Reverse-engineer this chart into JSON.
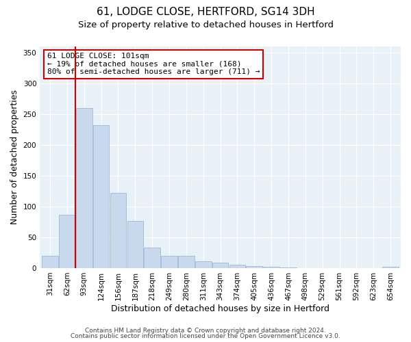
{
  "title": "61, LODGE CLOSE, HERTFORD, SG14 3DH",
  "subtitle": "Size of property relative to detached houses in Hertford",
  "xlabel": "Distribution of detached houses by size in Hertford",
  "ylabel": "Number of detached properties",
  "categories": [
    "31sqm",
    "62sqm",
    "93sqm",
    "124sqm",
    "156sqm",
    "187sqm",
    "218sqm",
    "249sqm",
    "280sqm",
    "311sqm",
    "343sqm",
    "374sqm",
    "405sqm",
    "436sqm",
    "467sqm",
    "498sqm",
    "529sqm",
    "561sqm",
    "592sqm",
    "623sqm",
    "654sqm"
  ],
  "values": [
    20,
    87,
    260,
    232,
    122,
    77,
    33,
    20,
    20,
    11,
    9,
    5,
    3,
    2,
    1,
    0,
    0,
    0,
    0,
    0,
    2
  ],
  "bar_color": "#c8d9ed",
  "bar_edgecolor": "#a0b8d8",
  "vline_color": "#cc0000",
  "vline_x_index": 2,
  "ylim": [
    0,
    360
  ],
  "yticks": [
    0,
    50,
    100,
    150,
    200,
    250,
    300,
    350
  ],
  "annotation_text": "61 LODGE CLOSE: 101sqm\n← 19% of detached houses are smaller (168)\n80% of semi-detached houses are larger (711) →",
  "annotation_box_edgecolor": "#cc0000",
  "annotation_box_facecolor": "#ffffff",
  "footer_line1": "Contains HM Land Registry data © Crown copyright and database right 2024.",
  "footer_line2": "Contains public sector information licensed under the Open Government Licence v3.0.",
  "figure_facecolor": "#ffffff",
  "plot_facecolor": "#e8f0f8",
  "title_fontsize": 11,
  "subtitle_fontsize": 9.5,
  "axis_label_fontsize": 9,
  "tick_fontsize": 7.5,
  "annotation_fontsize": 8,
  "footer_fontsize": 6.5
}
